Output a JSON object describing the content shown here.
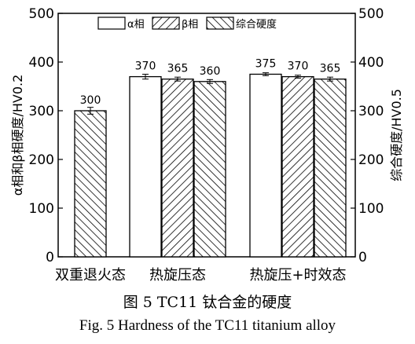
{
  "chart_data": {
    "type": "bar",
    "categories": [
      "双重退火态",
      "热旋压态",
      "热旋压+时效态"
    ],
    "series": [
      {
        "name": "α相",
        "pattern": "none",
        "values": [
          null,
          370,
          375
        ],
        "errors": [
          null,
          5,
          3
        ]
      },
      {
        "name": "β相",
        "pattern": "forward-hatch",
        "values": [
          null,
          365,
          370
        ],
        "errors": [
          null,
          4,
          3
        ]
      },
      {
        "name": "综合硬度",
        "pattern": "back-hatch",
        "values": [
          300,
          360,
          365
        ],
        "errors": [
          7,
          4,
          4
        ]
      }
    ],
    "data_labels": [
      [
        "",
        "370",
        "375"
      ],
      [
        "",
        "365",
        "370"
      ],
      [
        "300",
        "360",
        "365"
      ]
    ],
    "ylabel": "α相和β相硬度/HV0.2",
    "y2label": "综合硬度/HV0.5",
    "ylim": [
      0,
      500
    ],
    "yticks": [
      "0",
      "100",
      "200",
      "300",
      "400",
      "500"
    ],
    "legend_position": "top-center",
    "grid": false
  },
  "caption": {
    "cn": "图 5    TC11 钛合金的硬度",
    "en": "Fig. 5    Hardness of the TC11 titanium alloy"
  }
}
